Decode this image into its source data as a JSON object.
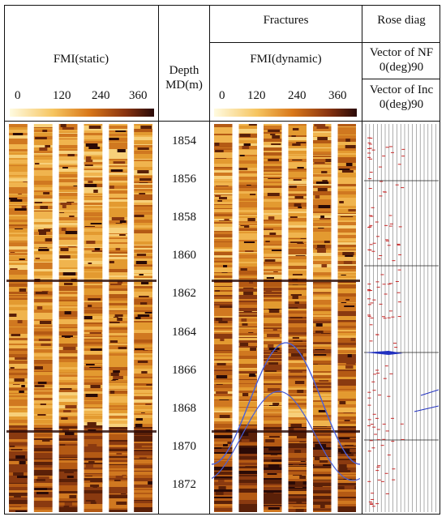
{
  "headers": {
    "fmi_static": "FMI(static)",
    "depth_line1": "Depth",
    "depth_line2": "MD(m)",
    "fractures": "Fractures",
    "fmi_dynamic": "FMI(dynamic)",
    "rose": "Rose diag",
    "vector_nf_line1": "Vector of NF",
    "vector_nf_line2": "0(deg)90",
    "vector_inc_line1": "Vector of Inc",
    "vector_inc_line2": "0(deg)90"
  },
  "scale_ticks": [
    "0",
    "120",
    "240",
    "360"
  ],
  "depths": [
    "1854",
    "1856",
    "1858",
    "1860",
    "1862",
    "1864",
    "1866",
    "1868",
    "1870",
    "1872"
  ],
  "colors": {
    "scale_low": "#fffbe0",
    "scale_mid1": "#f6c560",
    "scale_mid2": "#d9781a",
    "scale_mid3": "#8a3410",
    "scale_high": "#2a0a08",
    "fracture_curve": "#4a5fd8",
    "rose_marks": "#c82828",
    "rose_vector": "#2030c0"
  }
}
